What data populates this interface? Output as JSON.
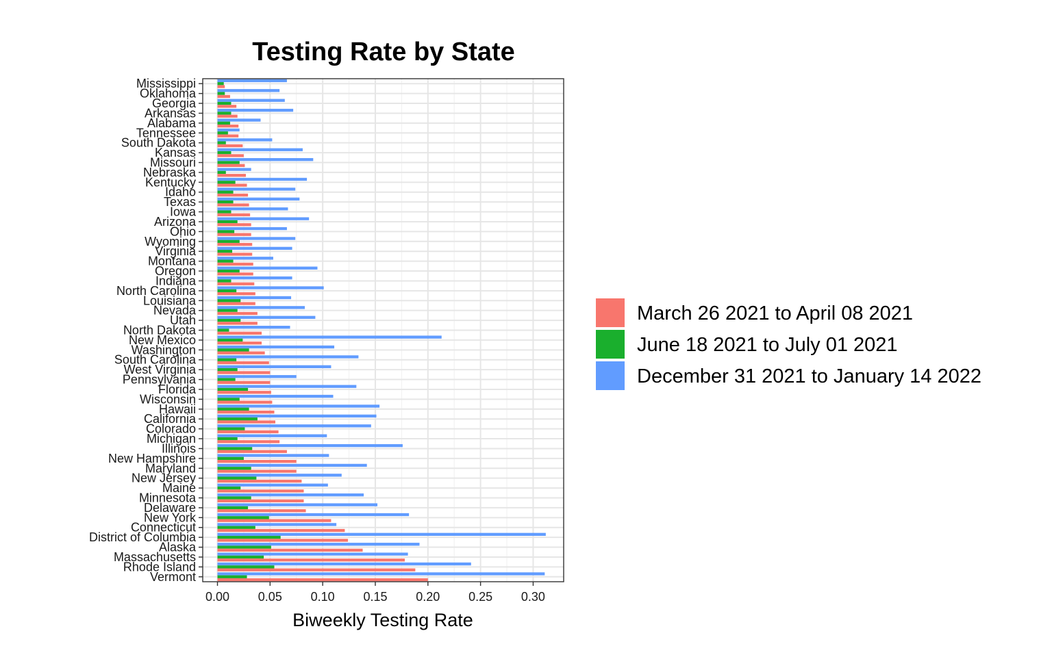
{
  "chart_data": {
    "type": "bar",
    "orientation": "horizontal",
    "title": "Testing Rate by State",
    "xlabel": "Biweekly Testing Rate",
    "ylabel": "",
    "xlim": [
      -0.014,
      0.329
    ],
    "xticks": [
      "0.00",
      "0.05",
      "0.10",
      "0.15",
      "0.20",
      "0.25",
      "0.30"
    ],
    "grid": true,
    "legend_position": "right",
    "categories": [
      "Mississippi",
      "Oklahoma",
      "Georgia",
      "Arkansas",
      "Alabama",
      "Tennessee",
      "South Dakota",
      "Kansas",
      "Missouri",
      "Nebraska",
      "Kentucky",
      "Idaho",
      "Texas",
      "Iowa",
      "Arizona",
      "Ohio",
      "Wyoming",
      "Virginia",
      "Montana",
      "Oregon",
      "Indiana",
      "North Carolina",
      "Louisiana",
      "Nevada",
      "Utah",
      "North Dakota",
      "New Mexico",
      "Washington",
      "South Carolina",
      "West Virginia",
      "Pennsylvania",
      "Florida",
      "Wisconsin",
      "Hawaii",
      "California",
      "Colorado",
      "Michigan",
      "Illinois",
      "New Hampshire",
      "Maryland",
      "New Jersey",
      "Maine",
      "Minnesota",
      "Delaware",
      "New York",
      "Connecticut",
      "District of Columbia",
      "Alaska",
      "Massachusetts",
      "Rhode Island",
      "Vermont"
    ],
    "series": [
      {
        "name": "March 26 2021 to April 08 2021",
        "color": "#F8766D",
        "values": [
          0.007,
          0.012,
          0.018,
          0.019,
          0.02,
          0.02,
          0.024,
          0.025,
          0.026,
          0.027,
          0.028,
          0.029,
          0.03,
          0.031,
          0.032,
          0.032,
          0.033,
          0.033,
          0.034,
          0.034,
          0.035,
          0.036,
          0.036,
          0.038,
          0.038,
          0.042,
          0.042,
          0.045,
          0.049,
          0.05,
          0.05,
          0.051,
          0.052,
          0.054,
          0.055,
          0.058,
          0.059,
          0.066,
          0.075,
          0.075,
          0.08,
          0.082,
          0.082,
          0.084,
          0.108,
          0.121,
          0.124,
          0.138,
          0.178,
          0.188,
          0.2
        ]
      },
      {
        "name": "June 18 2021 to July 01 2021",
        "color": "#1AAF2D",
        "values": [
          0.006,
          0.007,
          0.013,
          0.013,
          0.012,
          0.01,
          0.008,
          0.013,
          0.021,
          0.008,
          0.017,
          0.015,
          0.015,
          0.013,
          0.019,
          0.016,
          0.021,
          0.014,
          0.015,
          0.021,
          0.013,
          0.018,
          0.022,
          0.019,
          0.022,
          0.011,
          0.024,
          0.03,
          0.018,
          0.019,
          0.017,
          0.029,
          0.021,
          0.03,
          0.038,
          0.026,
          0.019,
          0.033,
          0.025,
          0.032,
          0.037,
          0.022,
          0.032,
          0.029,
          0.049,
          0.036,
          0.06,
          0.051,
          0.044,
          0.054,
          0.028
        ]
      },
      {
        "name": "December 31 2021 to January 14 2022",
        "color": "#619CFF",
        "values": [
          0.066,
          0.059,
          0.064,
          0.072,
          0.041,
          0.021,
          0.052,
          0.081,
          0.091,
          0.032,
          0.085,
          0.074,
          0.078,
          0.067,
          0.087,
          0.066,
          0.074,
          0.071,
          0.053,
          0.095,
          0.071,
          0.101,
          0.07,
          0.083,
          0.093,
          0.069,
          0.213,
          0.111,
          0.134,
          0.108,
          0.075,
          0.132,
          0.11,
          0.154,
          0.151,
          0.146,
          0.104,
          0.176,
          0.106,
          0.142,
          0.118,
          0.105,
          0.139,
          0.152,
          0.182,
          0.113,
          0.312,
          0.192,
          0.181,
          0.241,
          0.311
        ]
      }
    ]
  }
}
